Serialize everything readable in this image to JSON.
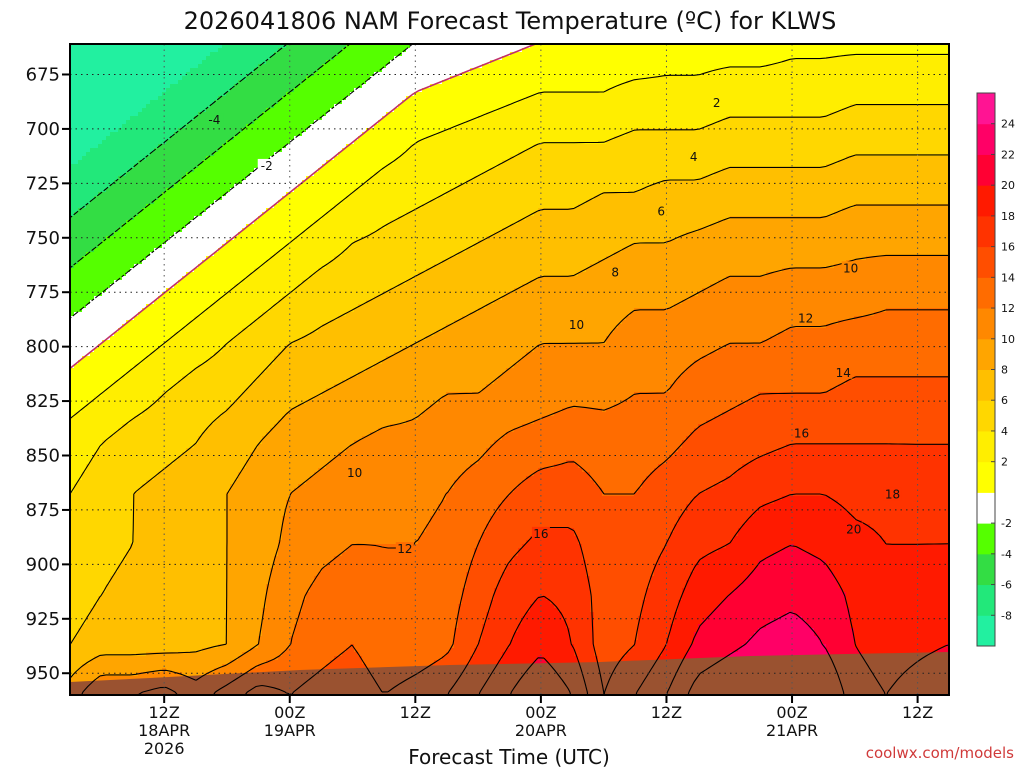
{
  "chart_data": {
    "type": "heatmap",
    "title": "2026041806 NAM Forecast Temperature (ºC) for KLWS",
    "xlabel": "Forecast Time (UTC)",
    "ylabel": "",
    "x_range_hours": [
      -3,
      81
    ],
    "y_range_hpa": [
      661,
      960
    ],
    "y_ticks": [
      675,
      700,
      725,
      750,
      775,
      800,
      825,
      850,
      875,
      900,
      925,
      950
    ],
    "x_ticks": [
      {
        "hour": 6,
        "line1": "12Z",
        "line2": "18APR",
        "line3": "2026"
      },
      {
        "hour": 18,
        "line1": "00Z",
        "line2": "19APR",
        "line3": ""
      },
      {
        "hour": 30,
        "line1": "12Z",
        "line2": "",
        "line3": ""
      },
      {
        "hour": 42,
        "line1": "00Z",
        "line2": "20APR",
        "line3": ""
      },
      {
        "hour": 54,
        "line1": "12Z",
        "line2": "",
        "line3": ""
      },
      {
        "hour": 66,
        "line1": "00Z",
        "line2": "21APR",
        "line3": ""
      },
      {
        "hour": 78,
        "line1": "12Z",
        "line2": "",
        "line3": ""
      }
    ],
    "grid": true,
    "colorbar": {
      "placement": "right",
      "levels": [
        -10,
        -8,
        -6,
        -4,
        -2,
        0,
        2,
        4,
        6,
        8,
        10,
        12,
        14,
        16,
        18,
        20,
        22,
        24,
        26
      ],
      "colors": [
        "#22f0a0",
        "#22e87a",
        "#33dd44",
        "#55ff00",
        "#ffffff",
        "#ffff00",
        "#ffee00",
        "#ffd700",
        "#ffbf00",
        "#ffa500",
        "#ff8800",
        "#ff6c00",
        "#ff4e00",
        "#ff3300",
        "#ff1a00",
        "#ff0033",
        "#ff0066",
        "#ff1493"
      ],
      "labels": [
        {
          "value": -8,
          "text": "-8"
        },
        {
          "value": -6,
          "text": "-6"
        },
        {
          "value": -4,
          "text": "-4"
        },
        {
          "value": -2,
          "text": "-2"
        },
        {
          "value": 2,
          "text": "2"
        },
        {
          "value": 4,
          "text": "4"
        },
        {
          "value": 6,
          "text": "6"
        },
        {
          "value": 8,
          "text": "8"
        },
        {
          "value": 10,
          "text": "10"
        },
        {
          "value": 12,
          "text": "12"
        },
        {
          "value": 14,
          "text": "14"
        },
        {
          "value": 16,
          "text": "16"
        },
        {
          "value": 18,
          "text": "18"
        },
        {
          "value": 20,
          "text": "20"
        },
        {
          "value": 22,
          "text": "22"
        },
        {
          "value": 24,
          "text": "24"
        }
      ]
    },
    "surface_color": "#9a5230",
    "contour_labels": [
      {
        "text": "-4",
        "hour": 10.8,
        "hpa": 696
      },
      {
        "text": "-2",
        "hour": 15.8,
        "hpa": 717
      },
      {
        "text": "2",
        "hour": 58.8,
        "hpa": 688
      },
      {
        "text": "4",
        "hour": 56.6,
        "hpa": 713
      },
      {
        "text": "6",
        "hour": 53.5,
        "hpa": 738
      },
      {
        "text": "8",
        "hour": 49.1,
        "hpa": 766
      },
      {
        "text": "10",
        "hour": 71.6,
        "hpa": 764
      },
      {
        "text": "10",
        "hour": 45.4,
        "hpa": 790
      },
      {
        "text": "10",
        "hour": 24.2,
        "hpa": 858
      },
      {
        "text": "12",
        "hour": 67.3,
        "hpa": 787
      },
      {
        "text": "12",
        "hour": 29.0,
        "hpa": 893
      },
      {
        "text": "14",
        "hour": 70.9,
        "hpa": 812
      },
      {
        "text": "16",
        "hour": 66.9,
        "hpa": 840
      },
      {
        "text": "16",
        "hour": 42.0,
        "hpa": 886
      },
      {
        "text": "18",
        "hour": 75.6,
        "hpa": 868
      },
      {
        "text": "20",
        "hour": 71.9,
        "hpa": 884
      }
    ],
    "isotherms": {
      "levels": [
        -6,
        -4,
        -2,
        0,
        2,
        4,
        6,
        8,
        10,
        12,
        14,
        16,
        18,
        20,
        22
      ],
      "profile_top_hpa": 660,
      "profile_bottom_hpa": 960,
      "profile": [
        {
          "hour": -3,
          "temps": [
            -13,
            -11,
            -9,
            -7,
            -5,
            -3,
            -1,
            1,
            3,
            4,
            4.5,
            5,
            6,
            9
          ]
        },
        {
          "hour": 0,
          "temps": [
            -12,
            -10,
            -8,
            -6,
            -4,
            -2,
            0,
            2,
            4,
            5,
            5.5,
            6,
            7,
            12
          ]
        },
        {
          "hour": 3,
          "temps": [
            -11,
            -9,
            -7,
            -5,
            -3,
            -1,
            1,
            3,
            5,
            6,
            6,
            6.5,
            7,
            12
          ]
        },
        {
          "hour": 6,
          "temps": [
            -10,
            -8,
            -6,
            -4,
            -2,
            0,
            2,
            4,
            5.5,
            6.5,
            6.5,
            6.5,
            7,
            13
          ]
        },
        {
          "hour": 9,
          "temps": [
            -9,
            -7,
            -5,
            -3,
            -1,
            1,
            3,
            5,
            6,
            7,
            7,
            7,
            7.5,
            11
          ]
        },
        {
          "hour": 12,
          "temps": [
            -8,
            -6,
            -4,
            -2,
            0,
            2,
            4,
            5.5,
            7,
            8,
            8,
            8,
            8,
            13
          ]
        },
        {
          "hour": 15,
          "temps": [
            -7,
            -5,
            -3,
            -1,
            1,
            3,
            5,
            6.5,
            8,
            9,
            9,
            9.5,
            10,
            15
          ]
        },
        {
          "hour": 18,
          "temps": [
            -6,
            -4,
            -2,
            0,
            2,
            4,
            6,
            7.5,
            9,
            10,
            10.5,
            11.5,
            12,
            14
          ]
        },
        {
          "hour": 21,
          "temps": [
            -5,
            -3,
            -1,
            1,
            3,
            5,
            6.5,
            8,
            9.5,
            10.5,
            11.5,
            12.5,
            13,
            15
          ]
        },
        {
          "hour": 24,
          "temps": [
            -4,
            -2,
            0,
            2,
            4,
            5.5,
            7,
            8.5,
            10,
            11,
            12,
            13,
            14,
            16
          ]
        },
        {
          "hour": 27,
          "temps": [
            -3,
            -1,
            1,
            3,
            4.5,
            6,
            7.5,
            9,
            10.5,
            11.5,
            12,
            12,
            12,
            14
          ]
        },
        {
          "hour": 30,
          "temps": [
            -2,
            0,
            2,
            3.5,
            5,
            6.5,
            8,
            9.5,
            10.5,
            11.5,
            12,
            12,
            12.5,
            15
          ]
        },
        {
          "hour": 33,
          "temps": [
            -1.5,
            0.5,
            2.5,
            4,
            5.5,
            7,
            8.5,
            10,
            11,
            12,
            12.5,
            13,
            13.5,
            16
          ]
        },
        {
          "hour": 36,
          "temps": [
            -1,
            1,
            3,
            4.5,
            6,
            7.5,
            9,
            10,
            11.5,
            13,
            14,
            15,
            16,
            18
          ]
        },
        {
          "hour": 39,
          "temps": [
            -0.5,
            1.5,
            3.5,
            5,
            6.5,
            8,
            9.5,
            10.5,
            12.5,
            14,
            15.5,
            17,
            18,
            20
          ]
        },
        {
          "hour": 42,
          "temps": [
            0,
            2,
            4,
            5.5,
            7,
            8.5,
            10,
            11,
            13,
            15,
            16.5,
            18,
            19.5,
            22
          ]
        },
        {
          "hour": 45,
          "temps": [
            0,
            2,
            4,
            5.5,
            7,
            8.5,
            10,
            11.5,
            13.5,
            15,
            16.5,
            17.5,
            18,
            20
          ]
        },
        {
          "hour": 48,
          "temps": [
            0.5,
            2,
            4,
            6,
            7.5,
            9,
            10,
            11.5,
            13,
            14,
            14.5,
            15,
            15,
            16
          ]
        },
        {
          "hour": 51,
          "temps": [
            0.5,
            2.5,
            4.5,
            6,
            8,
            9.5,
            11,
            12,
            13,
            14,
            15,
            15.5,
            16,
            18
          ]
        },
        {
          "hour": 54,
          "temps": [
            1,
            2.5,
            4.5,
            6.5,
            8,
            9.5,
            11,
            12,
            13.5,
            15,
            16,
            17,
            18,
            20
          ]
        },
        {
          "hour": 57,
          "temps": [
            1,
            2.5,
            4.5,
            6.5,
            8.5,
            10,
            11.5,
            13,
            14.5,
            16,
            17.5,
            19,
            20.5,
            23
          ]
        },
        {
          "hour": 60,
          "temps": [
            1,
            3,
            5,
            7,
            9,
            10.5,
            12,
            13.5,
            15,
            16.5,
            18,
            20,
            21.5,
            24
          ]
        },
        {
          "hour": 63,
          "temps": [
            1,
            3,
            5,
            7,
            9,
            10.5,
            12,
            14,
            15.5,
            17.5,
            19.5,
            21,
            22.5,
            25
          ]
        },
        {
          "hour": 66,
          "temps": [
            1.5,
            3,
            5,
            7,
            9,
            11,
            12.5,
            14,
            16,
            18,
            20,
            21.5,
            23,
            25
          ]
        },
        {
          "hour": 69,
          "temps": [
            1.5,
            3,
            5,
            7,
            9,
            11,
            12.5,
            14,
            16,
            18,
            19.5,
            21,
            22,
            24
          ]
        },
        {
          "hour": 72,
          "temps": [
            1.5,
            3.5,
            5.5,
            7.5,
            9.5,
            11,
            13,
            14.5,
            16,
            17.5,
            18.5,
            19.5,
            20,
            21
          ]
        },
        {
          "hour": 75,
          "temps": [
            1.5,
            3.5,
            5.5,
            7.5,
            9.5,
            11.5,
            13,
            14.5,
            16,
            17.5,
            18,
            18.5,
            19,
            20
          ]
        },
        {
          "hour": 78,
          "temps": [
            1.5,
            3.5,
            5.5,
            7.5,
            9.5,
            11.5,
            13,
            14.5,
            16,
            17,
            18,
            19,
            19.5,
            21
          ]
        },
        {
          "hour": 81,
          "temps": [
            1.5,
            3.5,
            5.5,
            7.5,
            9.5,
            11.5,
            13,
            14.5,
            16,
            17,
            18,
            19.5,
            20,
            22
          ]
        }
      ]
    }
  },
  "credit": "coolwx.com/models"
}
